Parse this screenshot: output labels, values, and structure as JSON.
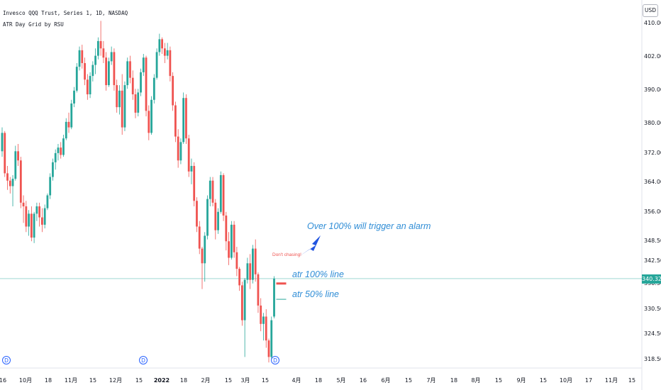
{
  "header": {
    "symbol_line": "Invesco QQQ Trust, Series 1, 1D, NASDAQ",
    "indicator_line": "ATR Day Grid by RSU"
  },
  "currency_button": "USD",
  "last_price_tag": "340.32",
  "annotations": {
    "alarm_note": "Over 100% will trigger an alarm",
    "chasing_note": "Don't chasing!",
    "atr100_label": "atr 100% line",
    "atr50_label": "atr 50% line"
  },
  "colors": {
    "up": "#26a69a",
    "down": "#ef5350",
    "price_line": "#26a69a",
    "annotation_text": "#2f8dd6",
    "arrow": "#2255e0",
    "atr100_line": "#ef5350",
    "atr50_line": "#26a69a",
    "dividend_marker": "#2962ff"
  },
  "chart_data": {
    "type": "candlestick",
    "title": "Invesco QQQ Trust, Series 1, 1D, NASDAQ",
    "y_axis": {
      "ticks": [
        "410.00",
        "402.00",
        "390.00",
        "380.00",
        "372.00",
        "364.00",
        "356.00",
        "348.50",
        "342.50",
        "336.50",
        "330.50",
        "324.50",
        "318.50"
      ],
      "ylim": [
        315.5,
        413.5
      ],
      "position": "right"
    },
    "x_axis": {
      "ticks": [
        {
          "label": "16"
        },
        {
          "label": "10月"
        },
        {
          "label": "18"
        },
        {
          "label": "11月"
        },
        {
          "label": "15"
        },
        {
          "label": "12月"
        },
        {
          "label": "15"
        },
        {
          "label": "2022",
          "bold": true
        },
        {
          "label": "18"
        },
        {
          "label": "2月"
        },
        {
          "label": "15"
        },
        {
          "label": "3月"
        },
        {
          "label": "15"
        },
        {
          "label": "4月"
        },
        {
          "label": "18"
        },
        {
          "label": "5月"
        },
        {
          "label": "16"
        },
        {
          "label": "6月"
        },
        {
          "label": "15"
        },
        {
          "label": "7月"
        },
        {
          "label": "18"
        },
        {
          "label": "8月"
        },
        {
          "label": "15"
        },
        {
          "label": "9月"
        },
        {
          "label": "15"
        },
        {
          "label": "10月"
        },
        {
          "label": "17"
        },
        {
          "label": "11月"
        },
        {
          "label": "15"
        }
      ]
    },
    "grid": false,
    "last_price": 340.32,
    "dividend_markers": [
      "D",
      "D",
      "D"
    ],
    "atr_lines": [
      {
        "name": "atr 100% line",
        "value": 339.0
      },
      {
        "name": "atr 50% line",
        "value": 334.7
      }
    ],
    "candles": [
      {
        "o": 375.0,
        "h": 381.5,
        "l": 373.5,
        "c": 380.0
      },
      {
        "o": 380.0,
        "h": 380.5,
        "l": 368.0,
        "c": 369.0
      },
      {
        "o": 369.0,
        "h": 371.0,
        "l": 364.5,
        "c": 367.0
      },
      {
        "o": 367.0,
        "h": 368.0,
        "l": 363.5,
        "c": 365.5
      },
      {
        "o": 365.5,
        "h": 368.5,
        "l": 360.0,
        "c": 367.5
      },
      {
        "o": 367.5,
        "h": 376.5,
        "l": 367.0,
        "c": 375.0
      },
      {
        "o": 375.0,
        "h": 377.0,
        "l": 371.0,
        "c": 372.5
      },
      {
        "o": 372.5,
        "h": 373.5,
        "l": 359.5,
        "c": 361.0
      },
      {
        "o": 361.0,
        "h": 363.0,
        "l": 355.5,
        "c": 360.0
      },
      {
        "o": 360.0,
        "h": 361.5,
        "l": 353.0,
        "c": 354.5
      },
      {
        "o": 354.5,
        "h": 359.0,
        "l": 352.0,
        "c": 358.0
      },
      {
        "o": 358.0,
        "h": 360.0,
        "l": 350.5,
        "c": 351.5
      },
      {
        "o": 351.5,
        "h": 358.5,
        "l": 350.0,
        "c": 358.0
      },
      {
        "o": 358.0,
        "h": 361.0,
        "l": 356.0,
        "c": 360.0
      },
      {
        "o": 360.0,
        "h": 361.0,
        "l": 354.5,
        "c": 357.0
      },
      {
        "o": 357.0,
        "h": 359.5,
        "l": 353.0,
        "c": 355.0
      },
      {
        "o": 355.0,
        "h": 360.5,
        "l": 354.0,
        "c": 359.5
      },
      {
        "o": 359.5,
        "h": 363.5,
        "l": 359.0,
        "c": 363.0
      },
      {
        "o": 363.0,
        "h": 369.0,
        "l": 362.0,
        "c": 368.0
      },
      {
        "o": 368.0,
        "h": 373.0,
        "l": 367.0,
        "c": 372.0
      },
      {
        "o": 372.0,
        "h": 375.5,
        "l": 370.0,
        "c": 374.5
      },
      {
        "o": 374.5,
        "h": 377.0,
        "l": 372.5,
        "c": 376.0
      },
      {
        "o": 376.0,
        "h": 377.5,
        "l": 373.0,
        "c": 374.0
      },
      {
        "o": 374.0,
        "h": 379.5,
        "l": 373.5,
        "c": 378.5
      },
      {
        "o": 378.5,
        "h": 384.0,
        "l": 378.0,
        "c": 383.0
      },
      {
        "o": 383.0,
        "h": 385.5,
        "l": 380.0,
        "c": 381.5
      },
      {
        "o": 381.5,
        "h": 389.0,
        "l": 381.0,
        "c": 388.0
      },
      {
        "o": 388.0,
        "h": 392.5,
        "l": 387.0,
        "c": 391.5
      },
      {
        "o": 391.5,
        "h": 399.0,
        "l": 391.0,
        "c": 398.0
      },
      {
        "o": 398.0,
        "h": 403.5,
        "l": 397.0,
        "c": 402.5
      },
      {
        "o": 402.5,
        "h": 404.0,
        "l": 397.5,
        "c": 399.0
      },
      {
        "o": 399.0,
        "h": 400.5,
        "l": 393.0,
        "c": 394.5
      },
      {
        "o": 394.5,
        "h": 396.0,
        "l": 389.0,
        "c": 390.5
      },
      {
        "o": 390.5,
        "h": 396.5,
        "l": 389.5,
        "c": 395.5
      },
      {
        "o": 395.5,
        "h": 399.5,
        "l": 394.0,
        "c": 398.5
      },
      {
        "o": 398.5,
        "h": 403.0,
        "l": 396.0,
        "c": 401.0
      },
      {
        "o": 401.0,
        "h": 406.0,
        "l": 400.0,
        "c": 405.0
      },
      {
        "o": 405.0,
        "h": 410.5,
        "l": 401.0,
        "c": 403.0
      },
      {
        "o": 403.0,
        "h": 405.0,
        "l": 399.0,
        "c": 400.5
      },
      {
        "o": 400.5,
        "h": 402.0,
        "l": 391.5,
        "c": 393.0
      },
      {
        "o": 393.0,
        "h": 400.5,
        "l": 392.5,
        "c": 399.5
      },
      {
        "o": 399.5,
        "h": 403.5,
        "l": 398.5,
        "c": 402.0
      },
      {
        "o": 402.0,
        "h": 403.0,
        "l": 391.5,
        "c": 393.0
      },
      {
        "o": 393.0,
        "h": 394.5,
        "l": 385.5,
        "c": 387.0
      },
      {
        "o": 387.0,
        "h": 393.0,
        "l": 385.0,
        "c": 391.5
      },
      {
        "o": 391.5,
        "h": 396.0,
        "l": 379.5,
        "c": 381.5
      },
      {
        "o": 381.5,
        "h": 394.0,
        "l": 380.5,
        "c": 393.0
      },
      {
        "o": 393.0,
        "h": 400.5,
        "l": 392.0,
        "c": 399.5
      },
      {
        "o": 399.5,
        "h": 401.0,
        "l": 393.5,
        "c": 395.0
      },
      {
        "o": 395.0,
        "h": 397.0,
        "l": 389.0,
        "c": 390.5
      },
      {
        "o": 390.5,
        "h": 392.0,
        "l": 384.0,
        "c": 385.5
      },
      {
        "o": 385.5,
        "h": 392.0,
        "l": 384.5,
        "c": 391.0
      },
      {
        "o": 391.0,
        "h": 397.5,
        "l": 390.0,
        "c": 396.5
      },
      {
        "o": 396.5,
        "h": 401.5,
        "l": 395.5,
        "c": 400.5
      },
      {
        "o": 400.5,
        "h": 401.0,
        "l": 384.5,
        "c": 386.0
      },
      {
        "o": 386.0,
        "h": 387.5,
        "l": 378.0,
        "c": 380.0
      },
      {
        "o": 380.0,
        "h": 390.0,
        "l": 379.5,
        "c": 389.0
      },
      {
        "o": 389.0,
        "h": 396.0,
        "l": 388.0,
        "c": 395.0
      },
      {
        "o": 395.0,
        "h": 403.0,
        "l": 394.5,
        "c": 402.0
      },
      {
        "o": 402.0,
        "h": 407.0,
        "l": 401.0,
        "c": 405.5
      },
      {
        "o": 405.5,
        "h": 406.0,
        "l": 401.5,
        "c": 403.0
      },
      {
        "o": 403.0,
        "h": 404.5,
        "l": 399.0,
        "c": 401.0
      },
      {
        "o": 401.0,
        "h": 404.5,
        "l": 400.0,
        "c": 402.5
      },
      {
        "o": 402.5,
        "h": 403.5,
        "l": 394.0,
        "c": 395.5
      },
      {
        "o": 395.5,
        "h": 396.5,
        "l": 386.0,
        "c": 387.5
      },
      {
        "o": 387.5,
        "h": 388.5,
        "l": 377.5,
        "c": 379.0
      },
      {
        "o": 379.0,
        "h": 381.0,
        "l": 370.5,
        "c": 372.5
      },
      {
        "o": 372.5,
        "h": 378.5,
        "l": 371.5,
        "c": 377.5
      },
      {
        "o": 377.5,
        "h": 391.0,
        "l": 377.0,
        "c": 389.5
      },
      {
        "o": 389.5,
        "h": 390.5,
        "l": 377.0,
        "c": 378.5
      },
      {
        "o": 378.5,
        "h": 379.5,
        "l": 368.0,
        "c": 369.5
      },
      {
        "o": 369.5,
        "h": 373.0,
        "l": 366.0,
        "c": 371.0
      },
      {
        "o": 371.0,
        "h": 372.0,
        "l": 360.0,
        "c": 361.5
      },
      {
        "o": 361.5,
        "h": 362.5,
        "l": 353.0,
        "c": 354.5
      },
      {
        "o": 354.5,
        "h": 356.0,
        "l": 347.0,
        "c": 348.5
      },
      {
        "o": 348.5,
        "h": 349.0,
        "l": 337.5,
        "c": 344.5
      },
      {
        "o": 344.5,
        "h": 353.0,
        "l": 339.5,
        "c": 352.0
      },
      {
        "o": 352.0,
        "h": 363.0,
        "l": 351.0,
        "c": 362.0
      },
      {
        "o": 362.0,
        "h": 368.0,
        "l": 360.0,
        "c": 367.0
      },
      {
        "o": 367.0,
        "h": 368.0,
        "l": 360.0,
        "c": 361.0
      },
      {
        "o": 361.0,
        "h": 362.0,
        "l": 351.0,
        "c": 353.5
      },
      {
        "o": 353.5,
        "h": 359.5,
        "l": 352.5,
        "c": 358.5
      },
      {
        "o": 358.5,
        "h": 369.5,
        "l": 358.0,
        "c": 368.5
      },
      {
        "o": 368.5,
        "h": 369.0,
        "l": 356.0,
        "c": 357.5
      },
      {
        "o": 357.5,
        "h": 358.5,
        "l": 348.0,
        "c": 350.5
      },
      {
        "o": 350.5,
        "h": 353.0,
        "l": 344.0,
        "c": 346.0
      },
      {
        "o": 346.0,
        "h": 356.0,
        "l": 345.5,
        "c": 355.0
      },
      {
        "o": 355.0,
        "h": 356.0,
        "l": 346.0,
        "c": 347.5
      },
      {
        "o": 347.5,
        "h": 349.0,
        "l": 341.0,
        "c": 343.0
      },
      {
        "o": 343.0,
        "h": 343.5,
        "l": 337.0,
        "c": 338.5
      },
      {
        "o": 338.5,
        "h": 339.5,
        "l": 327.5,
        "c": 329.0
      },
      {
        "o": 329.0,
        "h": 340.5,
        "l": 319.0,
        "c": 340.0
      },
      {
        "o": 340.0,
        "h": 346.0,
        "l": 339.0,
        "c": 344.5
      },
      {
        "o": 344.5,
        "h": 347.0,
        "l": 337.5,
        "c": 340.0
      },
      {
        "o": 340.0,
        "h": 349.5,
        "l": 339.0,
        "c": 348.5
      },
      {
        "o": 348.5,
        "h": 351.0,
        "l": 339.5,
        "c": 341.5
      },
      {
        "o": 341.5,
        "h": 342.0,
        "l": 331.0,
        "c": 333.0
      },
      {
        "o": 333.0,
        "h": 335.0,
        "l": 326.0,
        "c": 328.0
      },
      {
        "o": 328.0,
        "h": 331.0,
        "l": 323.5,
        "c": 330.0
      },
      {
        "o": 330.0,
        "h": 332.0,
        "l": 321.5,
        "c": 323.5
      },
      {
        "o": 323.5,
        "h": 324.0,
        "l": 317.5,
        "c": 319.0
      },
      {
        "o": 319.0,
        "h": 330.0,
        "l": 318.5,
        "c": 329.0
      },
      {
        "o": 330.0,
        "h": 341.0,
        "l": 329.5,
        "c": 340.32
      }
    ]
  }
}
